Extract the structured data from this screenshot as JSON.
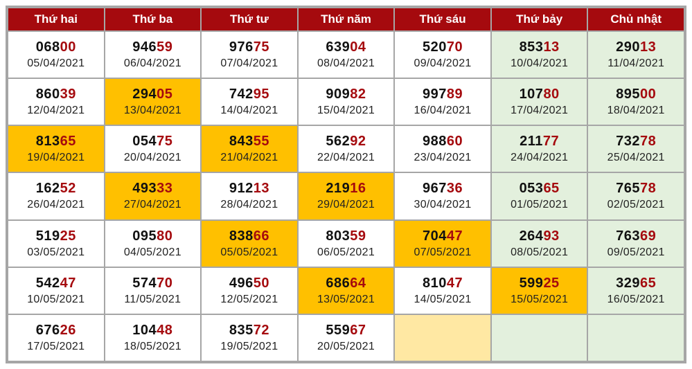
{
  "colors": {
    "header_bg": "#a50a0e",
    "highlight": "#ffc000",
    "weekend_bg": "#e3f0dd",
    "suffix_text": "#a50a0e"
  },
  "headers": [
    "Thứ hai",
    "Thứ ba",
    "Thứ tư",
    "Thứ năm",
    "Thứ sáu",
    "Thứ bảy",
    "Chủ nhật"
  ],
  "rows": [
    [
      {
        "prefix": "068",
        "suffix": "00",
        "date": "05/04/2021",
        "highlight": false
      },
      {
        "prefix": "946",
        "suffix": "59",
        "date": "06/04/2021",
        "highlight": false
      },
      {
        "prefix": "976",
        "suffix": "75",
        "date": "07/04/2021",
        "highlight": false
      },
      {
        "prefix": "639",
        "suffix": "04",
        "date": "08/04/2021",
        "highlight": false
      },
      {
        "prefix": "520",
        "suffix": "70",
        "date": "09/04/2021",
        "highlight": false
      },
      {
        "prefix": "853",
        "suffix": "13",
        "date": "10/04/2021",
        "highlight": false
      },
      {
        "prefix": "290",
        "suffix": "13",
        "date": "11/04/2021",
        "highlight": false
      }
    ],
    [
      {
        "prefix": "860",
        "suffix": "39",
        "date": "12/04/2021",
        "highlight": false
      },
      {
        "prefix": "294",
        "suffix": "05",
        "date": "13/04/2021",
        "highlight": true
      },
      {
        "prefix": "742",
        "suffix": "95",
        "date": "14/04/2021",
        "highlight": false
      },
      {
        "prefix": "909",
        "suffix": "82",
        "date": "15/04/2021",
        "highlight": false
      },
      {
        "prefix": "997",
        "suffix": "89",
        "date": "16/04/2021",
        "highlight": false
      },
      {
        "prefix": "107",
        "suffix": "80",
        "date": "17/04/2021",
        "highlight": false
      },
      {
        "prefix": "895",
        "suffix": "00",
        "date": "18/04/2021",
        "highlight": false
      }
    ],
    [
      {
        "prefix": "813",
        "suffix": "65",
        "date": "19/04/2021",
        "highlight": true
      },
      {
        "prefix": "054",
        "suffix": "75",
        "date": "20/04/2021",
        "highlight": false
      },
      {
        "prefix": "843",
        "suffix": "55",
        "date": "21/04/2021",
        "highlight": true
      },
      {
        "prefix": "562",
        "suffix": "92",
        "date": "22/04/2021",
        "highlight": false
      },
      {
        "prefix": "988",
        "suffix": "60",
        "date": "23/04/2021",
        "highlight": false
      },
      {
        "prefix": "211",
        "suffix": "77",
        "date": "24/04/2021",
        "highlight": false
      },
      {
        "prefix": "732",
        "suffix": "78",
        "date": "25/04/2021",
        "highlight": false
      }
    ],
    [
      {
        "prefix": "162",
        "suffix": "52",
        "date": "26/04/2021",
        "highlight": false
      },
      {
        "prefix": "493",
        "suffix": "33",
        "date": "27/04/2021",
        "highlight": true
      },
      {
        "prefix": "912",
        "suffix": "13",
        "date": "28/04/2021",
        "highlight": false
      },
      {
        "prefix": "219",
        "suffix": "16",
        "date": "29/04/2021",
        "highlight": true
      },
      {
        "prefix": "967",
        "suffix": "36",
        "date": "30/04/2021",
        "highlight": false
      },
      {
        "prefix": "053",
        "suffix": "65",
        "date": "01/05/2021",
        "highlight": false
      },
      {
        "prefix": "765",
        "suffix": "78",
        "date": "02/05/2021",
        "highlight": false
      }
    ],
    [
      {
        "prefix": "519",
        "suffix": "25",
        "date": "03/05/2021",
        "highlight": false
      },
      {
        "prefix": "095",
        "suffix": "80",
        "date": "04/05/2021",
        "highlight": false
      },
      {
        "prefix": "838",
        "suffix": "66",
        "date": "05/05/2021",
        "highlight": true
      },
      {
        "prefix": "803",
        "suffix": "59",
        "date": "06/05/2021",
        "highlight": false
      },
      {
        "prefix": "704",
        "suffix": "47",
        "date": "07/05/2021",
        "highlight": true
      },
      {
        "prefix": "264",
        "suffix": "93",
        "date": "08/05/2021",
        "highlight": false
      },
      {
        "prefix": "763",
        "suffix": "69",
        "date": "09/05/2021",
        "highlight": false
      }
    ],
    [
      {
        "prefix": "542",
        "suffix": "47",
        "date": "10/05/2021",
        "highlight": false
      },
      {
        "prefix": "574",
        "suffix": "70",
        "date": "11/05/2021",
        "highlight": false
      },
      {
        "prefix": "496",
        "suffix": "50",
        "date": "12/05/2021",
        "highlight": false
      },
      {
        "prefix": "686",
        "suffix": "64",
        "date": "13/05/2021",
        "highlight": true
      },
      {
        "prefix": "810",
        "suffix": "47",
        "date": "14/05/2021",
        "highlight": false
      },
      {
        "prefix": "599",
        "suffix": "25",
        "date": "15/05/2021",
        "highlight": true
      },
      {
        "prefix": "329",
        "suffix": "65",
        "date": "16/05/2021",
        "highlight": false
      }
    ],
    [
      {
        "prefix": "676",
        "suffix": "26",
        "date": "17/05/2021",
        "highlight": false
      },
      {
        "prefix": "104",
        "suffix": "48",
        "date": "18/05/2021",
        "highlight": false
      },
      {
        "prefix": "835",
        "suffix": "72",
        "date": "19/05/2021",
        "highlight": false
      },
      {
        "prefix": "559",
        "suffix": "67",
        "date": "20/05/2021",
        "highlight": false
      },
      null,
      null,
      null
    ]
  ]
}
